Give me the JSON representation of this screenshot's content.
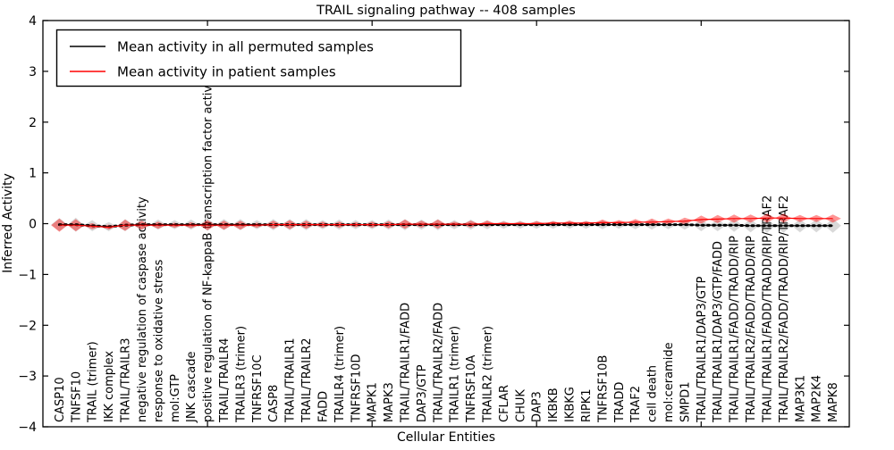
{
  "figure": {
    "title": "TRAIL signaling pathway -- 408 samples",
    "xlabel": "Cellular Entities",
    "ylabel": "Inferred Activity"
  },
  "legend": {
    "items": [
      {
        "label": "Mean activity in all permuted samples",
        "color": "#000000"
      },
      {
        "label": "Mean activity in patient samples",
        "color": "#ff0000"
      }
    ]
  },
  "chart_data": {
    "type": "violin",
    "title": "TRAIL signaling pathway -- 408 samples",
    "xlabel": "Cellular Entities",
    "ylabel": "Inferred Activity",
    "ylim": [
      -4,
      4
    ],
    "yticks": [
      4,
      3,
      2,
      1,
      0,
      -1,
      -2,
      -3,
      -4
    ],
    "xtick_positions": [
      10,
      20,
      30,
      40
    ],
    "grid": false,
    "legend_position": "upper left",
    "entities": [
      "CASP10",
      "TNFSF10",
      "TRAIL (trimer)",
      "IKK complex",
      "TRAIL/TRAILR3",
      "negative regulation of caspase activity",
      "response to oxidative stress",
      "mol:GTP",
      "JNK cascade",
      "positive regulation of NF-kappaB transcription factor activity",
      "TRAIL/TRAILR4",
      "TRAILR3 (trimer)",
      "TNFRSF10C",
      "CASP8",
      "TRAIL/TRAILR1",
      "TRAIL/TRAILR2",
      "FADD",
      "TRAILR4 (trimer)",
      "TNFRSF10D",
      "MAPK1",
      "MAPK3",
      "TRAIL/TRAILR1/FADD",
      "DAP3/GTP",
      "TRAIL/TRAILR2/FADD",
      "TRAILR1 (trimer)",
      "TNFRSF10A",
      "TRAILR2 (trimer)",
      "CFLAR",
      "CHUK",
      "DAP3",
      "IKBKB",
      "IKBKG",
      "RIPK1",
      "TNFRSF10B",
      "TRADD",
      "TRAF2",
      "cell death",
      "mol:ceramide",
      "SMPD1",
      "TRAIL/TRAILR1/DAP3/GTP",
      "TRAIL/TRAILR1/DAP3/GTP/FADD",
      "TRAIL/TRAILR1/FADD/TRADD/RIP",
      "TRAIL/TRAILR2/FADD/TRADD/RIP",
      "TRAIL/TRAILR1/FADD/TRADD/RIP/TRAF2",
      "TRAIL/TRAILR2/FADD/TRADD/RIP/TRAF2",
      "MAP3K1",
      "MAP2K4",
      "MAPK8"
    ],
    "series": [
      {
        "name": "permuted",
        "legend_label": "Mean activity in all permuted samples",
        "line_color": "#000000",
        "fill_color": "rgba(130,130,130,0.30)",
        "mean": [
          -0.02,
          -0.02,
          -0.04,
          -0.06,
          -0.03,
          -0.02,
          -0.02,
          -0.02,
          -0.02,
          -0.02,
          -0.02,
          -0.02,
          -0.02,
          -0.02,
          -0.02,
          -0.02,
          -0.02,
          -0.02,
          -0.02,
          -0.02,
          -0.02,
          -0.02,
          -0.02,
          -0.02,
          -0.02,
          -0.02,
          -0.02,
          -0.02,
          -0.02,
          -0.02,
          -0.02,
          -0.02,
          -0.02,
          -0.02,
          -0.02,
          -0.02,
          -0.02,
          -0.02,
          -0.02,
          -0.03,
          -0.03,
          -0.03,
          -0.04,
          -0.04,
          -0.04,
          -0.04,
          -0.04,
          -0.04
        ],
        "spread": [
          0.13,
          0.14,
          0.11,
          0.09,
          0.12,
          0.11,
          0.1,
          0.09,
          0.1,
          0.12,
          0.11,
          0.11,
          0.09,
          0.11,
          0.11,
          0.11,
          0.09,
          0.1,
          0.09,
          0.09,
          0.1,
          0.11,
          0.1,
          0.11,
          0.09,
          0.1,
          0.09,
          0.08,
          0.08,
          0.08,
          0.08,
          0.08,
          0.08,
          0.09,
          0.08,
          0.09,
          0.1,
          0.09,
          0.1,
          0.12,
          0.12,
          0.13,
          0.13,
          0.14,
          0.14,
          0.13,
          0.13,
          0.14
        ]
      },
      {
        "name": "patient",
        "legend_label": "Mean activity in patient samples",
        "line_color": "#ff0000",
        "fill_color": "rgba(255,0,0,0.42)",
        "mean": [
          -0.03,
          -0.03,
          -0.05,
          -0.07,
          -0.03,
          -0.03,
          -0.03,
          -0.03,
          -0.03,
          -0.03,
          -0.03,
          -0.03,
          -0.03,
          -0.02,
          -0.02,
          -0.02,
          -0.02,
          -0.02,
          -0.02,
          -0.02,
          -0.02,
          -0.01,
          -0.01,
          -0.01,
          -0.01,
          -0.01,
          0.0,
          0.0,
          0.0,
          0.0,
          0.01,
          0.01,
          0.01,
          0.02,
          0.02,
          0.03,
          0.03,
          0.04,
          0.05,
          0.08,
          0.09,
          0.1,
          0.1,
          0.11,
          0.11,
          0.1,
          0.1,
          0.1
        ],
        "spread": [
          0.13,
          0.12,
          0.06,
          0.05,
          0.11,
          0.09,
          0.07,
          0.05,
          0.06,
          0.1,
          0.09,
          0.09,
          0.05,
          0.08,
          0.09,
          0.08,
          0.06,
          0.06,
          0.05,
          0.06,
          0.07,
          0.09,
          0.07,
          0.09,
          0.05,
          0.07,
          0.06,
          0.04,
          0.04,
          0.05,
          0.04,
          0.05,
          0.04,
          0.06,
          0.05,
          0.06,
          0.07,
          0.06,
          0.07,
          0.08,
          0.08,
          0.08,
          0.08,
          0.09,
          0.09,
          0.07,
          0.07,
          0.08
        ]
      }
    ]
  }
}
